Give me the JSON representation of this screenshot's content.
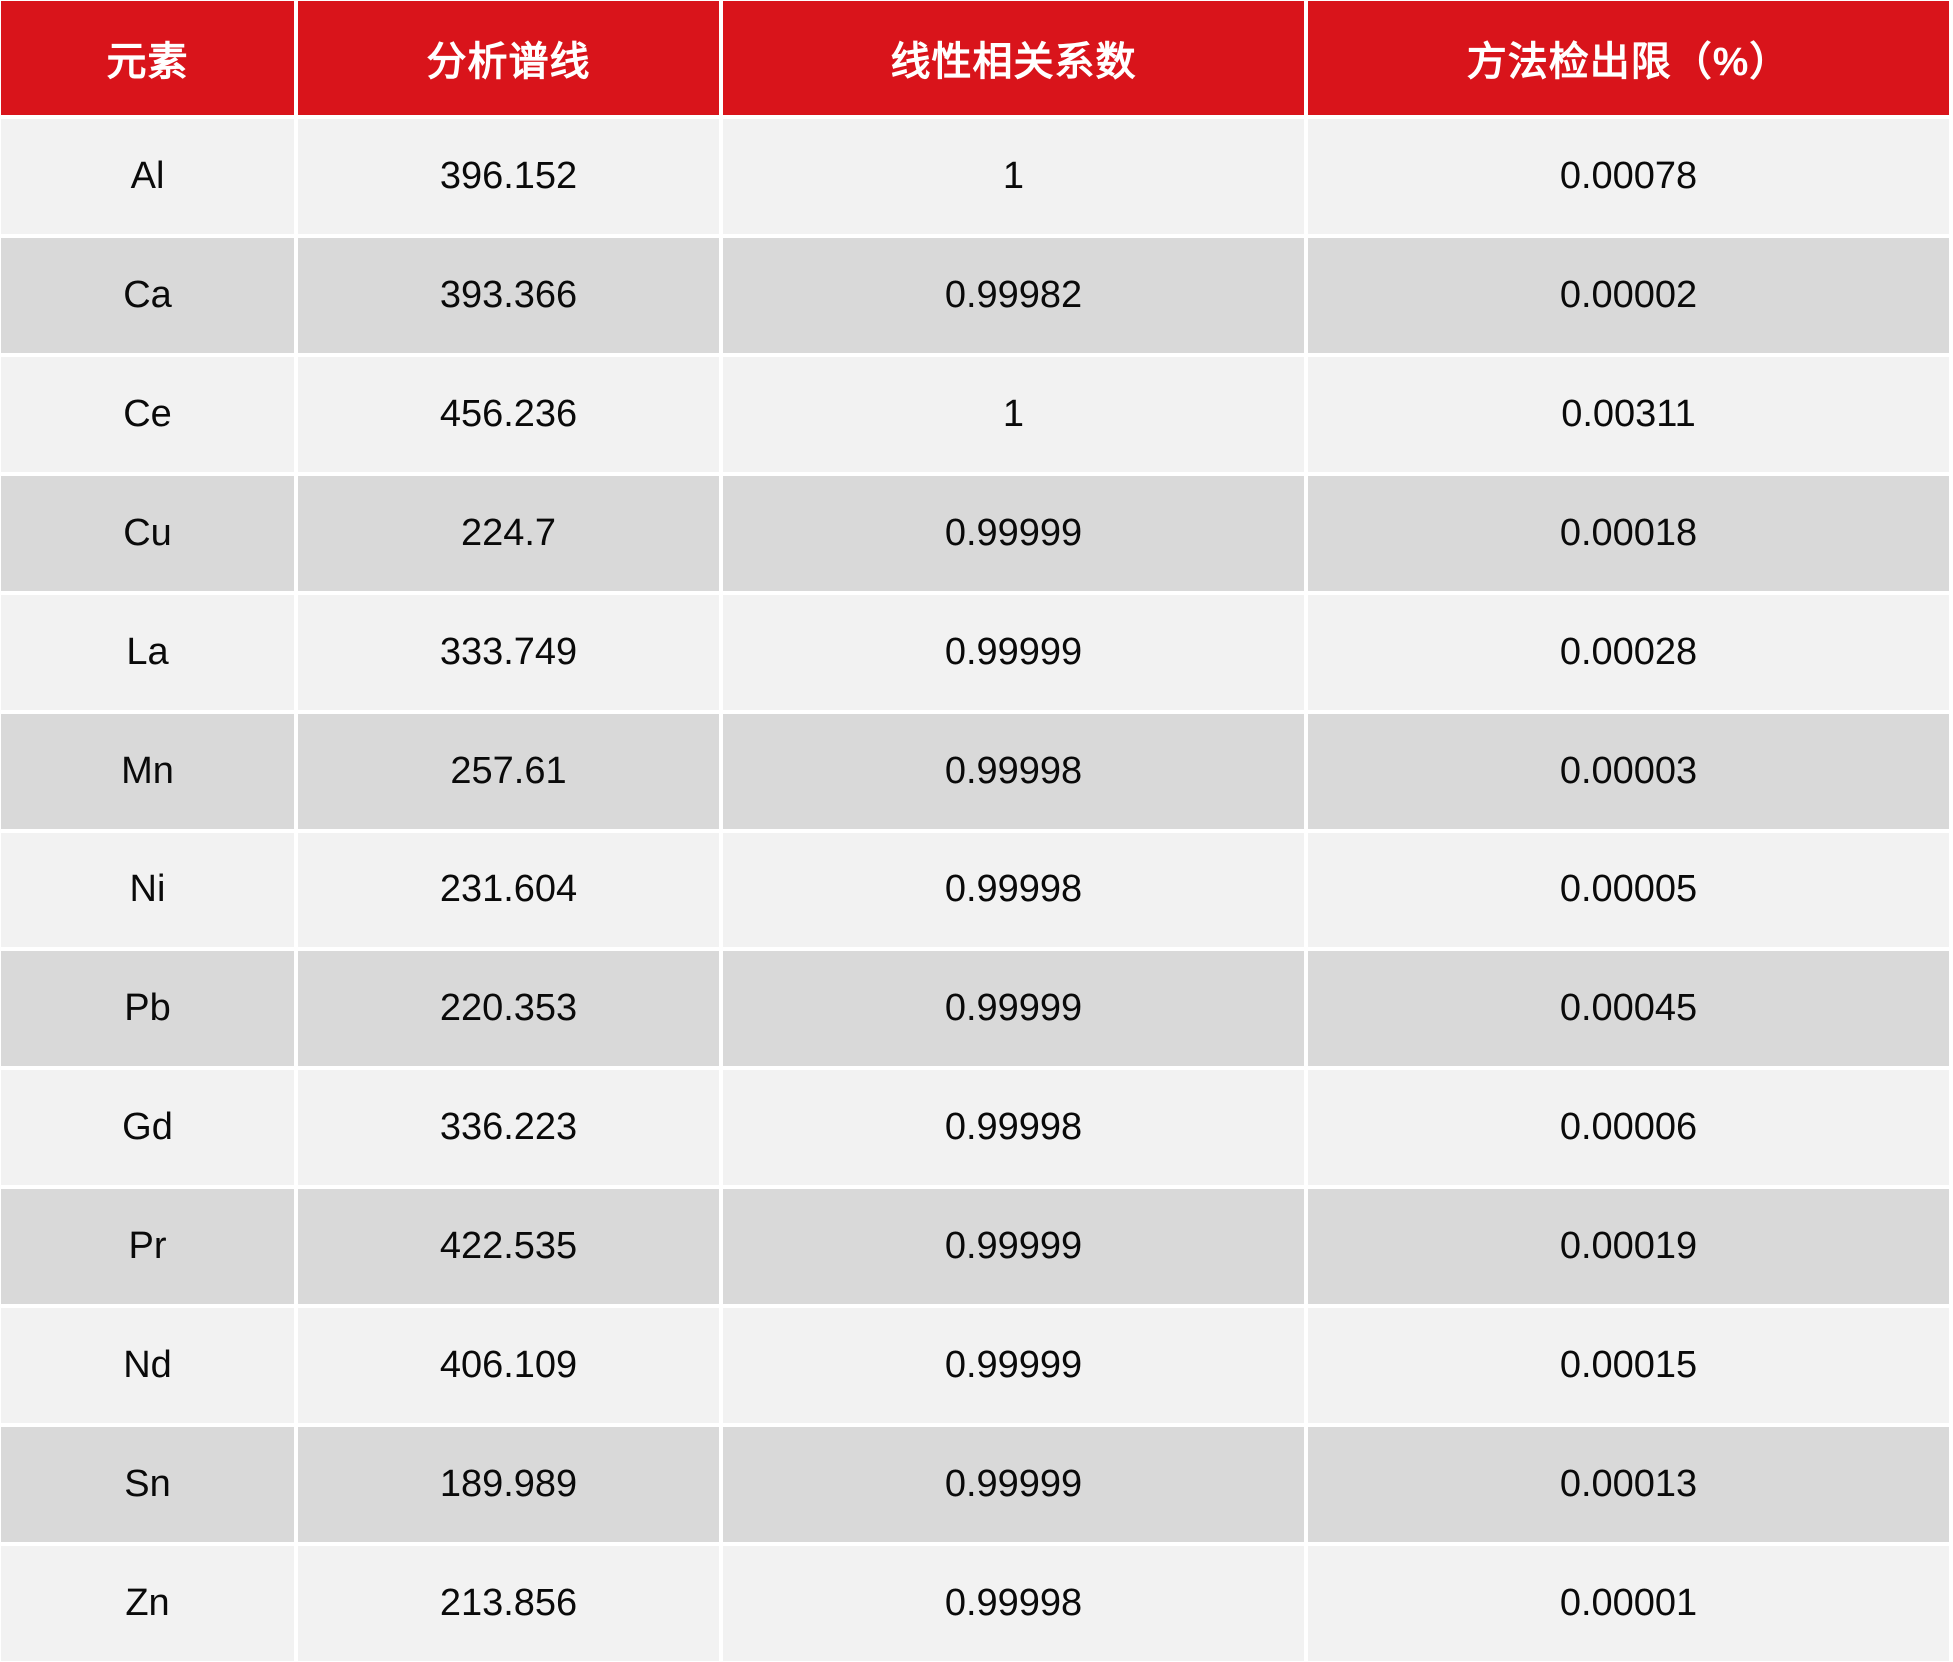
{
  "colors": {
    "header_bg": "#d9141b",
    "header_text": "#ffffff",
    "row_light_bg": "#f2f2f2",
    "row_dark_bg": "#d9d9d9",
    "cell_text": "#0a0a0a",
    "grid_line": "#ffffff"
  },
  "table": {
    "headers": [
      "元素",
      "分析谱线",
      "线性相关系数",
      "方法检出限（%）"
    ],
    "rows": [
      [
        "Al",
        "396.152",
        "1",
        "0.00078"
      ],
      [
        "Ca",
        "393.366",
        "0.99982",
        "0.00002"
      ],
      [
        "Ce",
        "456.236",
        "1",
        "0.00311"
      ],
      [
        "Cu",
        "224.7",
        "0.99999",
        "0.00018"
      ],
      [
        "La",
        "333.749",
        "0.99999",
        "0.00028"
      ],
      [
        "Mn",
        "257.61",
        "0.99998",
        "0.00003"
      ],
      [
        "Ni",
        "231.604",
        "0.99998",
        "0.00005"
      ],
      [
        "Pb",
        "220.353",
        "0.99999",
        "0.00045"
      ],
      [
        "Gd",
        "336.223",
        "0.99998",
        "0.00006"
      ],
      [
        "Pr",
        "422.535",
        "0.99999",
        "0.00019"
      ],
      [
        "Nd",
        "406.109",
        "0.99999",
        "0.00015"
      ],
      [
        "Sn",
        "189.989",
        "0.99999",
        "0.00013"
      ],
      [
        "Zn",
        "213.856",
        "0.99998",
        "0.00001"
      ]
    ]
  },
  "chart_data": {
    "type": "table",
    "title": "",
    "columns": [
      "元素",
      "分析谱线",
      "线性相关系数",
      "方法检出限（%）"
    ],
    "rows": [
      {
        "element": "Al",
        "spectral_line": 396.152,
        "correlation": 1,
        "detection_limit_pct": 0.00078
      },
      {
        "element": "Ca",
        "spectral_line": 393.366,
        "correlation": 0.99982,
        "detection_limit_pct": 2e-05
      },
      {
        "element": "Ce",
        "spectral_line": 456.236,
        "correlation": 1,
        "detection_limit_pct": 0.00311
      },
      {
        "element": "Cu",
        "spectral_line": 224.7,
        "correlation": 0.99999,
        "detection_limit_pct": 0.00018
      },
      {
        "element": "La",
        "spectral_line": 333.749,
        "correlation": 0.99999,
        "detection_limit_pct": 0.00028
      },
      {
        "element": "Mn",
        "spectral_line": 257.61,
        "correlation": 0.99998,
        "detection_limit_pct": 3e-05
      },
      {
        "element": "Ni",
        "spectral_line": 231.604,
        "correlation": 0.99998,
        "detection_limit_pct": 5e-05
      },
      {
        "element": "Pb",
        "spectral_line": 220.353,
        "correlation": 0.99999,
        "detection_limit_pct": 0.00045
      },
      {
        "element": "Gd",
        "spectral_line": 336.223,
        "correlation": 0.99998,
        "detection_limit_pct": 6e-05
      },
      {
        "element": "Pr",
        "spectral_line": 422.535,
        "correlation": 0.99999,
        "detection_limit_pct": 0.00019
      },
      {
        "element": "Nd",
        "spectral_line": 406.109,
        "correlation": 0.99999,
        "detection_limit_pct": 0.00015
      },
      {
        "element": "Sn",
        "spectral_line": 189.989,
        "correlation": 0.99999,
        "detection_limit_pct": 0.00013
      },
      {
        "element": "Zn",
        "spectral_line": 213.856,
        "correlation": 0.99998,
        "detection_limit_pct": 1e-05
      }
    ],
    "layout": {
      "header_style": "red-banner",
      "row_striping": "alternating light/dark gray",
      "grid": "white gaps between cells",
      "text_align": "center"
    }
  }
}
